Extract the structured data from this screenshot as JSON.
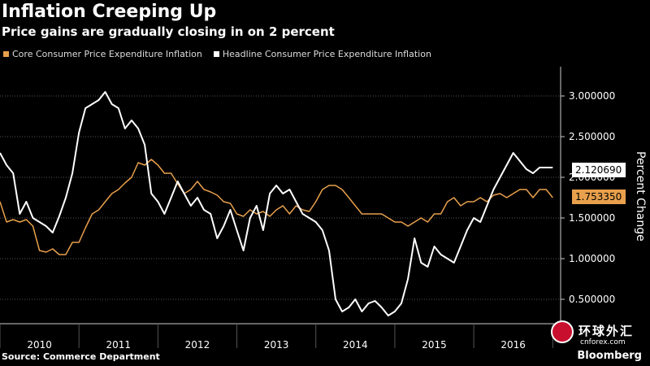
{
  "title": "Inflation Creeping Up",
  "subtitle": "Price gains are gradually closing in on 2 percent",
  "source": "Source: Commerce Department",
  "brand": "Bloomberg",
  "watermark": {
    "cn": "环球外汇",
    "en": "cnforex.com"
  },
  "colors": {
    "core": "#e8a04c",
    "headline": "#ffffff",
    "grid": "#555555",
    "axis": "#cccccc"
  },
  "chart_data": {
    "type": "line",
    "title": "Inflation Creeping Up",
    "subtitle": "Price gains are gradually closing in on 2 percent",
    "ylabel": "Percent Change",
    "ylim": [
      0.2,
      3.3
    ],
    "yticks": [
      "3.000000",
      "2.500000",
      "2.000000",
      "1.500000",
      "1.000000",
      "0.500000"
    ],
    "ytick_values": [
      3.0,
      2.5,
      2.0,
      1.5,
      1.0,
      0.5
    ],
    "x_labels": [
      "2010",
      "2011",
      "2012",
      "2013",
      "2014",
      "2015",
      "2016"
    ],
    "x_start": 2010.0,
    "x_end": 2017.1,
    "grid": "horizontal",
    "legend_position": "top-left",
    "series": [
      {
        "name": "Core Consumer Price Expenditure Inflation",
        "color": "#e8a04c",
        "last_label": "1.753350",
        "x": [
          2010.0,
          2010.083,
          2010.167,
          2010.25,
          2010.333,
          2010.417,
          2010.5,
          2010.583,
          2010.667,
          2010.75,
          2010.833,
          2010.917,
          2011.0,
          2011.083,
          2011.167,
          2011.25,
          2011.333,
          2011.417,
          2011.5,
          2011.583,
          2011.667,
          2011.75,
          2011.833,
          2011.917,
          2012.0,
          2012.083,
          2012.167,
          2012.25,
          2012.333,
          2012.417,
          2012.5,
          2012.583,
          2012.667,
          2012.75,
          2012.833,
          2012.917,
          2013.0,
          2013.083,
          2013.167,
          2013.25,
          2013.333,
          2013.417,
          2013.5,
          2013.583,
          2013.667,
          2013.75,
          2013.833,
          2013.917,
          2014.0,
          2014.083,
          2014.167,
          2014.25,
          2014.333,
          2014.417,
          2014.5,
          2014.583,
          2014.667,
          2014.75,
          2014.833,
          2014.917,
          2015.0,
          2015.083,
          2015.167,
          2015.25,
          2015.333,
          2015.417,
          2015.5,
          2015.583,
          2015.667,
          2015.75,
          2015.833,
          2015.917,
          2016.0,
          2016.083,
          2016.167,
          2016.25,
          2016.333,
          2016.417,
          2016.5,
          2016.583,
          2016.667,
          2016.75,
          2016.833,
          2016.917,
          2017.0
        ],
        "values": [
          1.7,
          1.45,
          1.48,
          1.45,
          1.48,
          1.4,
          1.1,
          1.08,
          1.12,
          1.05,
          1.05,
          1.2,
          1.2,
          1.38,
          1.55,
          1.6,
          1.7,
          1.8,
          1.85,
          1.93,
          2.0,
          2.18,
          2.15,
          2.22,
          2.15,
          2.05,
          2.05,
          1.92,
          1.8,
          1.85,
          1.95,
          1.85,
          1.82,
          1.78,
          1.7,
          1.68,
          1.55,
          1.52,
          1.6,
          1.55,
          1.58,
          1.52,
          1.6,
          1.65,
          1.55,
          1.65,
          1.6,
          1.58,
          1.7,
          1.85,
          1.9,
          1.9,
          1.85,
          1.75,
          1.65,
          1.55,
          1.55,
          1.55,
          1.55,
          1.5,
          1.45,
          1.45,
          1.4,
          1.45,
          1.5,
          1.45,
          1.55,
          1.55,
          1.7,
          1.75,
          1.65,
          1.7,
          1.7,
          1.75,
          1.7,
          1.78,
          1.8,
          1.75,
          1.8,
          1.85,
          1.85,
          1.75,
          1.85,
          1.85,
          1.75
        ]
      },
      {
        "name": "Headline Consumer Price Expenditure Inflation",
        "color": "#ffffff",
        "last_label": "2.120690",
        "x": [
          2010.0,
          2010.083,
          2010.167,
          2010.25,
          2010.333,
          2010.417,
          2010.5,
          2010.583,
          2010.667,
          2010.75,
          2010.833,
          2010.917,
          2011.0,
          2011.083,
          2011.167,
          2011.25,
          2011.333,
          2011.417,
          2011.5,
          2011.583,
          2011.667,
          2011.75,
          2011.833,
          2011.917,
          2012.0,
          2012.083,
          2012.167,
          2012.25,
          2012.333,
          2012.417,
          2012.5,
          2012.583,
          2012.667,
          2012.75,
          2012.833,
          2012.917,
          2013.0,
          2013.083,
          2013.167,
          2013.25,
          2013.333,
          2013.417,
          2013.5,
          2013.583,
          2013.667,
          2013.75,
          2013.833,
          2013.917,
          2014.0,
          2014.083,
          2014.167,
          2014.25,
          2014.333,
          2014.417,
          2014.5,
          2014.583,
          2014.667,
          2014.75,
          2014.833,
          2014.917,
          2015.0,
          2015.083,
          2015.167,
          2015.25,
          2015.333,
          2015.417,
          2015.5,
          2015.583,
          2015.667,
          2015.75,
          2015.833,
          2015.917,
          2016.0,
          2016.083,
          2016.167,
          2016.25,
          2016.333,
          2016.417,
          2016.5,
          2016.583,
          2016.667,
          2016.75,
          2016.833,
          2016.917,
          2017.0
        ],
        "values": [
          2.3,
          2.15,
          2.05,
          1.55,
          1.7,
          1.5,
          1.45,
          1.4,
          1.32,
          1.52,
          1.75,
          2.05,
          2.55,
          2.85,
          2.9,
          2.95,
          3.05,
          2.9,
          2.85,
          2.6,
          2.7,
          2.6,
          2.4,
          1.8,
          1.7,
          1.55,
          1.75,
          1.95,
          1.8,
          1.65,
          1.75,
          1.6,
          1.55,
          1.25,
          1.4,
          1.6,
          1.35,
          1.1,
          1.5,
          1.65,
          1.35,
          1.8,
          1.9,
          1.8,
          1.85,
          1.7,
          1.55,
          1.5,
          1.45,
          1.35,
          1.1,
          0.5,
          0.35,
          0.4,
          0.5,
          0.35,
          0.45,
          0.48,
          0.4,
          0.3,
          0.35,
          0.45,
          0.75,
          1.25,
          0.95,
          0.9,
          1.15,
          1.05,
          1.0,
          0.95,
          1.15,
          1.35,
          1.5,
          1.45,
          1.65,
          1.85,
          2.0,
          2.15,
          2.3,
          2.2,
          2.1,
          2.05,
          2.12,
          2.12,
          2.12
        ]
      }
    ]
  }
}
